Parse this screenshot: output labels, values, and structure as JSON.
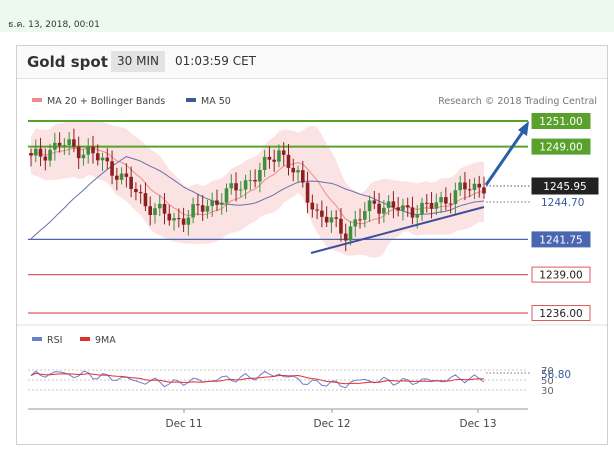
{
  "header": {
    "timestamp": "ธ.ค. 13, 2018, 00:01",
    "instrument": "Gold spot",
    "timeframe": "30 MIN",
    "time": "01:03:59 CET"
  },
  "chart_data": [
    {
      "type": "candlestick",
      "title": "Gold spot",
      "legend": [
        {
          "name": "MA 20 + Bollinger Bands",
          "color": "#f08b8b"
        },
        {
          "name": "MA 50",
          "color": "#3a5a9a"
        }
      ],
      "legend_placement": "top-left",
      "attribution": "Research © 2018 Trading Central",
      "x_ticks": [
        "Dec 11",
        "Dec 12",
        "Dec 13"
      ],
      "ylim": [
        1235,
        1252.5
      ],
      "current_price": "1245.95",
      "ma_value": "1244.70",
      "levels": [
        {
          "value": 1251.0,
          "label": "1251.00",
          "color": "#5aa02c",
          "type": "resistance"
        },
        {
          "value": 1249.0,
          "label": "1249.00",
          "color": "#5aa02c",
          "type": "resistance"
        },
        {
          "value": 1241.75,
          "label": "1241.75",
          "color": "#4a66b0",
          "type": "pivot"
        },
        {
          "value": 1239.0,
          "label": "1239.00",
          "color": "#e05a5a",
          "type": "support"
        },
        {
          "value": 1236.0,
          "label": "1236.00",
          "color": "#e05a5a",
          "type": "support"
        }
      ],
      "colors": {
        "up": "#3f8f3f",
        "down": "#8a2020"
      }
    },
    {
      "type": "line",
      "title": "RSI",
      "legend": [
        {
          "name": "RSI",
          "color": "#6a7fd0"
        },
        {
          "name": "9MA",
          "color": "#e03030"
        }
      ],
      "ylim": [
        20,
        80
      ],
      "y_ticks": [
        "70",
        "50",
        "30"
      ],
      "current_value": "56.80"
    }
  ]
}
